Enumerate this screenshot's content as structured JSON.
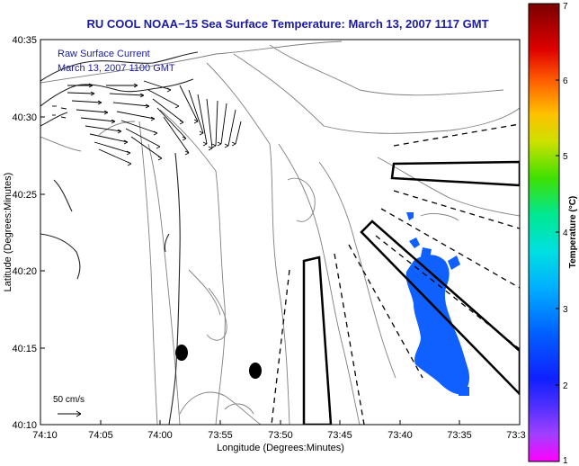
{
  "title": "RU COOL  NOAA−15  Sea Surface Temperature:  March 13, 2007 1117 GMT",
  "current_legend": {
    "line1": "Raw Surface Current",
    "line2": "March 13, 2007 1100 GMT"
  },
  "scale_bar": {
    "label": "50 cm/s"
  },
  "axes": {
    "xlabel": "Longitude (Degrees:Minutes)",
    "ylabel": "Latitude (Degrees:Minutes)",
    "x_ticks": [
      "74:10",
      "74:05",
      "74:00",
      "73:55",
      "73:50",
      "73:45",
      "73:40",
      "73:35",
      "73:3"
    ],
    "y_ticks": [
      "40:35",
      "40:30",
      "40:25",
      "40:20",
      "40:15",
      "40:10"
    ]
  },
  "colorbar": {
    "label": "Temperature (°C)",
    "ticks": [
      "7",
      "6",
      "5",
      "4",
      "3",
      "2",
      "1"
    ],
    "range": [
      1,
      7
    ],
    "colors": [
      "#ff00ff",
      "#7a2cff",
      "#1020ff",
      "#0090ff",
      "#00e0e0",
      "#00e890",
      "#40e000",
      "#d0e000",
      "#ffc000",
      "#ff6000",
      "#e00000",
      "#800000"
    ]
  },
  "sst_patch_color": "#1060ff"
}
